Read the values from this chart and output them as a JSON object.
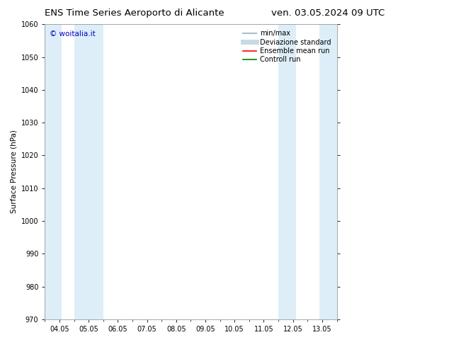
{
  "title_left": "ENS Time Series Aeroporto di Alicante",
  "title_right": "ven. 03.05.2024 09 UTC",
  "ylabel": "Surface Pressure (hPa)",
  "ylim": [
    970,
    1060
  ],
  "yticks": [
    970,
    980,
    990,
    1000,
    1010,
    1020,
    1030,
    1040,
    1050,
    1060
  ],
  "xtick_labels": [
    "04.05",
    "05.05",
    "06.05",
    "07.05",
    "08.05",
    "09.05",
    "10.05",
    "11.05",
    "12.05",
    "13.05"
  ],
  "band_color": "#ddeef8",
  "background_color": "#ffffff",
  "watermark": "© woitalia.it",
  "watermark_color": "#0000cc",
  "legend_items": [
    {
      "label": "min/max",
      "color": "#a8bfc8",
      "lw": 1.5
    },
    {
      "label": "Deviazione standard",
      "color": "#c8dae5",
      "lw": 5
    },
    {
      "label": "Ensemble mean run",
      "color": "#ff0000",
      "lw": 1.2
    },
    {
      "label": "Controll run",
      "color": "#008000",
      "lw": 1.2
    }
  ],
  "title_fontsize": 9.5,
  "axis_label_fontsize": 7.5,
  "tick_fontsize": 7,
  "legend_fontsize": 7,
  "watermark_fontsize": 7.5
}
